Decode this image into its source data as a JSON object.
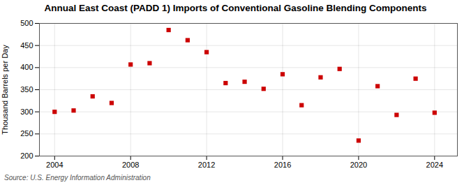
{
  "chart_data": {
    "type": "scatter",
    "title": "Annual East Coast (PADD 1) Imports of Conventional Gasoline Blending Components",
    "ylabel": "Thousand Barrels per Day",
    "source": "Source: U.S. Energy Information Administration",
    "x": [
      2004,
      2005,
      2006,
      2007,
      2008,
      2009,
      2010,
      2011,
      2012,
      2013,
      2014,
      2015,
      2016,
      2017,
      2018,
      2019,
      2020,
      2021,
      2022,
      2023,
      2024
    ],
    "values": [
      300,
      303,
      335,
      320,
      407,
      410,
      485,
      462,
      435,
      365,
      368,
      352,
      385,
      315,
      378,
      397,
      235,
      358,
      293,
      375,
      298
    ],
    "color": "#cc0000",
    "marker": "square",
    "xlim": [
      2003.2,
      2025.2
    ],
    "xticks": [
      2004,
      2008,
      2012,
      2016,
      2020,
      2024
    ],
    "ylim": [
      200,
      500
    ],
    "yticks": [
      200,
      250,
      300,
      350,
      400,
      450,
      500
    ],
    "grid": true
  }
}
